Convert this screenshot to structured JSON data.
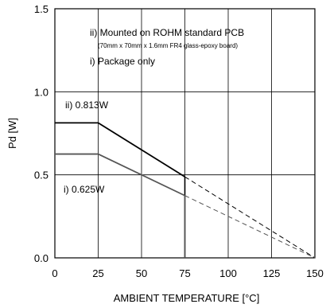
{
  "chart_data": {
    "type": "line",
    "xlabel": "AMBIENT TEMPERATURE [°C]",
    "ylabel": "Pd [W]",
    "xlim": [
      0,
      150
    ],
    "ylim": [
      0,
      1.5
    ],
    "x_ticks": [
      "0",
      "25",
      "50",
      "75",
      "100",
      "125",
      "150"
    ],
    "y_ticks": [
      "0.0",
      "0.5",
      "1.0",
      "1.5"
    ],
    "grid": true,
    "series": [
      {
        "name": "ii) Mounted on ROHM standard PCB",
        "subtitle": "(70mm x 70mm x 1.6mm FR4 glass-epoxy board)",
        "label": "ii) 0.813W",
        "color": "#000000",
        "x": [
          0,
          25,
          75
        ],
        "y": [
          0.813,
          0.813,
          0.488
        ],
        "dashed_extension": {
          "x": [
            75,
            150
          ],
          "y": [
            0.488,
            0.0
          ]
        },
        "drop_to_zero_at": 75
      },
      {
        "name": "i) Package only",
        "label": "i) 0.625W",
        "color": "#555555",
        "x": [
          0,
          25,
          75
        ],
        "y": [
          0.625,
          0.625,
          0.375
        ],
        "dashed_extension": {
          "x": [
            75,
            150
          ],
          "y": [
            0.375,
            0.0
          ]
        },
        "drop_to_zero_at": 75
      }
    ]
  }
}
